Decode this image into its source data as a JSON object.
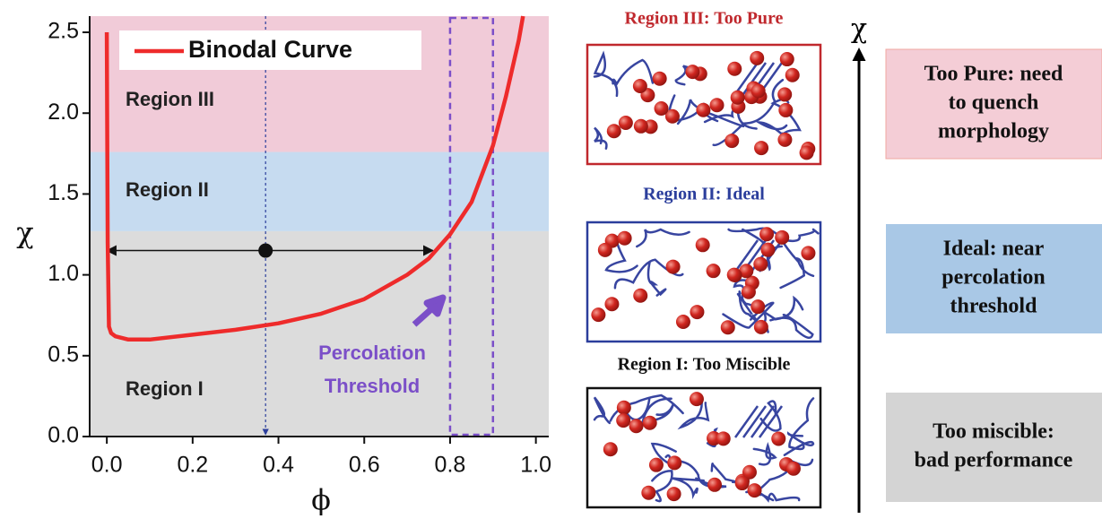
{
  "chart_data": {
    "type": "line",
    "x_label": "ϕ",
    "y_label": "χ",
    "xlim": [
      -0.04,
      1.03
    ],
    "ylim": [
      0,
      2.6
    ],
    "xticks": [
      {
        "value": 0,
        "label": "0.0"
      },
      {
        "value": 0.2,
        "label": "0.2"
      },
      {
        "value": 0.4,
        "label": "0.4"
      },
      {
        "value": 0.6,
        "label": "0.6"
      },
      {
        "value": 0.8,
        "label": "0.8"
      },
      {
        "value": 1,
        "label": "1.0"
      }
    ],
    "yticks": [
      {
        "value": 0,
        "label": "0.0"
      },
      {
        "value": 0.5,
        "label": "0.5"
      },
      {
        "value": 1,
        "label": "1.0"
      },
      {
        "value": 1.5,
        "label": "1.5"
      },
      {
        "value": 2,
        "label": "2.0"
      },
      {
        "value": 2.5,
        "label": "2.5"
      }
    ],
    "series": [
      {
        "name": "Binodal Curve",
        "color": "#ee2b2b",
        "x": [
          0,
          0.002,
          0.005,
          0.01,
          0.02,
          0.05,
          0.1,
          0.2,
          0.3,
          0.4,
          0.5,
          0.6,
          0.7,
          0.75,
          0.8,
          0.85,
          0.9,
          0.93,
          0.96,
          0.97
        ],
        "values": [
          2.5,
          1.2,
          0.68,
          0.64,
          0.62,
          0.6,
          0.6,
          0.63,
          0.66,
          0.7,
          0.76,
          0.85,
          1.0,
          1.1,
          1.25,
          1.45,
          1.8,
          2.1,
          2.45,
          2.6
        ]
      }
    ],
    "regions": [
      {
        "label": "Region I",
        "from": 0,
        "to": 1.27,
        "color": "#dcdcdc"
      },
      {
        "label": "Region II",
        "from": 1.27,
        "to": 1.76,
        "color": "#c6dbf0"
      },
      {
        "label": "Region III",
        "from": 1.76,
        "to": 2.6,
        "color": "#f1cbd8"
      }
    ],
    "tie_line": {
      "y": 1.15,
      "x_from": 0,
      "x_to": 0.76
    },
    "state_point": {
      "x": 0.37,
      "y": 1.15
    },
    "threshold_band": {
      "from": 0.8,
      "to": 0.9,
      "color": "#7b4fc8"
    },
    "annotation": [
      "Percolation",
      "Threshold"
    ]
  },
  "schematics": [
    {
      "title": "Region III: Too Pure",
      "color": "#c0282d"
    },
    {
      "title": "Region II: Ideal",
      "color": "#2b3e9c"
    },
    {
      "title": "Region I: Too Miscible",
      "color": "#111111"
    }
  ],
  "scale_label": "χ",
  "descriptions": [
    {
      "lines": [
        "Too Pure: need",
        "to quench",
        "morphology"
      ],
      "color": "#f4cdd6"
    },
    {
      "lines": [
        "Ideal: near",
        "percolation",
        "threshold"
      ],
      "color": "#a9c8e6"
    },
    {
      "lines": [
        "Too miscible:",
        "bad performance"
      ],
      "color": "#d4d4d4"
    }
  ]
}
